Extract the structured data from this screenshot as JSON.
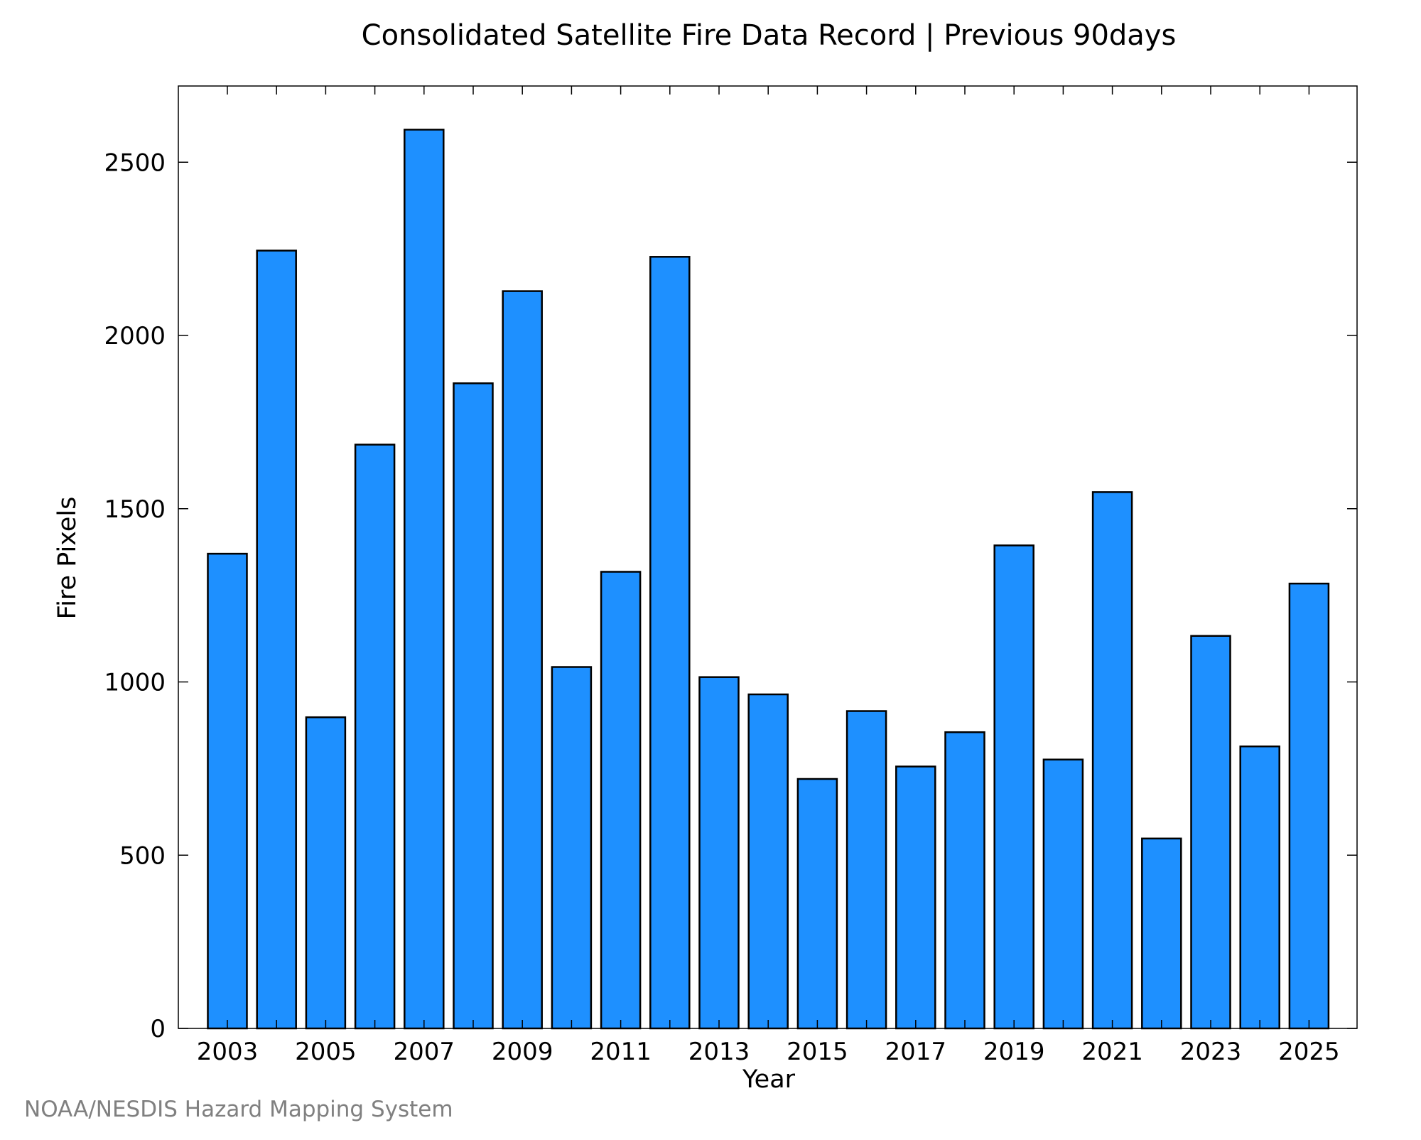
{
  "chart_data": {
    "type": "bar",
    "title": "Consolidated Satellite Fire Data Record | Previous 90days",
    "xlabel": "Year",
    "ylabel": "Fire Pixels",
    "footer": "NOAA/NESDIS Hazard Mapping System",
    "categories": [
      "2003",
      "2004",
      "2005",
      "2006",
      "2007",
      "2008",
      "2009",
      "2010",
      "2011",
      "2012",
      "2013",
      "2014",
      "2015",
      "2016",
      "2017",
      "2018",
      "2019",
      "2020",
      "2021",
      "2022",
      "2023",
      "2024",
      "2025"
    ],
    "values": [
      1370,
      2245,
      898,
      1685,
      2594,
      1862,
      2128,
      1043,
      1318,
      2227,
      1014,
      964,
      720,
      916,
      756,
      855,
      1394,
      776,
      1548,
      548,
      1133,
      814,
      1284
    ],
    "x_tick_labels": [
      "2003",
      "2005",
      "2007",
      "2009",
      "2011",
      "2013",
      "2015",
      "2017",
      "2019",
      "2021",
      "2023",
      "2025"
    ],
    "y_ticks": [
      0,
      500,
      1000,
      1500,
      2000,
      2500
    ],
    "ylim": [
      0,
      2720
    ],
    "grid": false,
    "bar_color": "#1e90ff",
    "bar_edge_color": "#000000",
    "footer_color": "#808080"
  }
}
